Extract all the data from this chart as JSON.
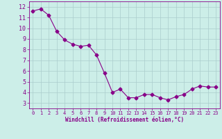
{
  "x": [
    0,
    1,
    2,
    3,
    4,
    5,
    6,
    7,
    8,
    9,
    10,
    11,
    12,
    13,
    14,
    15,
    16,
    17,
    18,
    19,
    20,
    21,
    22,
    23
  ],
  "y": [
    11.6,
    11.8,
    11.2,
    9.7,
    8.9,
    8.5,
    8.3,
    8.4,
    7.5,
    5.8,
    4.0,
    4.3,
    3.5,
    3.5,
    3.8,
    3.8,
    3.5,
    3.3,
    3.6,
    3.8,
    4.3,
    4.6,
    4.5,
    4.5
  ],
  "line_color": "#880088",
  "marker": "D",
  "marker_size": 2.5,
  "bg_color": "#cceee8",
  "grid_color": "#aacccc",
  "xlabel": "Windchill (Refroidissement éolien,°C)",
  "xlim": [
    -0.5,
    23.5
  ],
  "ylim": [
    2.5,
    12.5
  ],
  "yticks": [
    3,
    4,
    5,
    6,
    7,
    8,
    9,
    10,
    11,
    12
  ],
  "xticks": [
    0,
    1,
    2,
    3,
    4,
    5,
    6,
    7,
    8,
    9,
    10,
    11,
    12,
    13,
    14,
    15,
    16,
    17,
    18,
    19,
    20,
    21,
    22,
    23
  ],
  "tick_color": "#880088",
  "label_color": "#880088"
}
